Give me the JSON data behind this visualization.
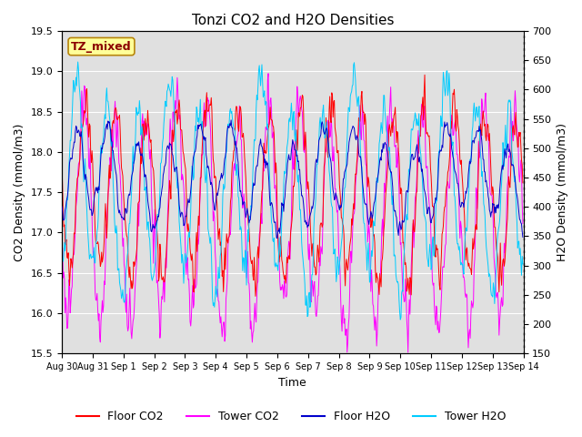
{
  "title": "Tonzi CO2 and H2O Densities",
  "xlabel": "Time",
  "ylabel_left": "CO2 Density (mmol/m3)",
  "ylabel_right": "H2O Density (mmol/m3)",
  "co2_ylim": [
    15.5,
    19.5
  ],
  "h2o_ylim": [
    150,
    700
  ],
  "annotation_text": "TZ_mixed",
  "annotation_color": "#8B0000",
  "annotation_bg": "#FFFF99",
  "annotation_border": "#B8860B",
  "bg_color": "#E0E0E0",
  "line_colors": {
    "floor_co2": "#FF0000",
    "tower_co2": "#FF00FF",
    "floor_h2o": "#0000CC",
    "tower_h2o": "#00CCFF"
  },
  "legend_labels": [
    "Floor CO2",
    "Tower CO2",
    "Floor H2O",
    "Tower H2O"
  ],
  "n_days": 15,
  "dt_hours": 0.5,
  "figsize": [
    6.4,
    4.8
  ],
  "dpi": 100
}
